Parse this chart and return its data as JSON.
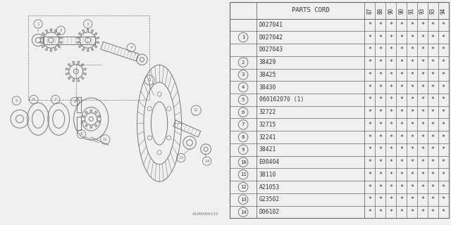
{
  "diagram_label": "A190A00115",
  "table_header_left": "PARTS CORD",
  "year_cols": [
    "87",
    "88",
    "90",
    "90",
    "91",
    "93",
    "93",
    "94"
  ],
  "rows": [
    {
      "ref": "",
      "part": "D027041"
    },
    {
      "ref": "1",
      "part": "D027042"
    },
    {
      "ref": "",
      "part": "D027043"
    },
    {
      "ref": "2",
      "part": "38429"
    },
    {
      "ref": "3",
      "part": "38425"
    },
    {
      "ref": "4",
      "part": "38430"
    },
    {
      "ref": "5",
      "part": "060162070 (1)"
    },
    {
      "ref": "6",
      "part": "32722"
    },
    {
      "ref": "7",
      "part": "32715"
    },
    {
      "ref": "8",
      "part": "32241"
    },
    {
      "ref": "9",
      "part": "38421"
    },
    {
      "ref": "10",
      "part": "E00404"
    },
    {
      "ref": "11",
      "part": "38110"
    },
    {
      "ref": "12",
      "part": "A21053"
    },
    {
      "ref": "13",
      "part": "G23502"
    },
    {
      "ref": "14",
      "part": "D06102"
    }
  ],
  "bg_color": "#f0f0f0",
  "line_color": "#666666",
  "text_color": "#333333",
  "diagram_ink": "#777777"
}
